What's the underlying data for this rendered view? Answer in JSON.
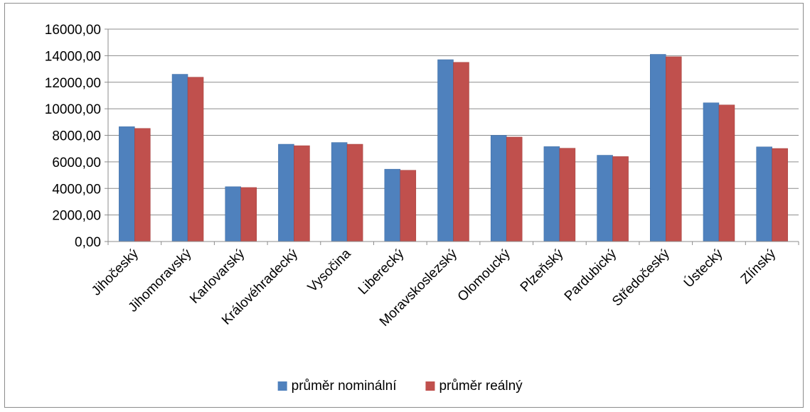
{
  "chart_data": {
    "type": "bar",
    "title": "",
    "xlabel": "",
    "ylabel": "",
    "ylim": [
      0,
      16000
    ],
    "ytick_step": 2000,
    "y_tick_format": "decimal-comma-2",
    "grid": true,
    "legend_position": "bottom",
    "categories": [
      "Jihočeský",
      "Jihomoravský",
      "Karlovarský",
      "Královéhradecký",
      "Vysočina",
      "Liberecký",
      "Moravskoslezský",
      "Olomoucký",
      "Plzeňský",
      "Pardubický",
      "Středočeský",
      "Ústecký",
      "Zlínský"
    ],
    "series": [
      {
        "name": "průměr nominální",
        "color": "#4f81bd",
        "values": [
          8650,
          12600,
          4130,
          7330,
          7460,
          5450,
          13700,
          8000,
          7150,
          6500,
          14100,
          10450,
          7130
        ]
      },
      {
        "name": "průměr reálný",
        "color": "#c0504d",
        "values": [
          8520,
          12380,
          4070,
          7220,
          7330,
          5370,
          13500,
          7870,
          7030,
          6400,
          13920,
          10290,
          7010
        ]
      }
    ]
  }
}
